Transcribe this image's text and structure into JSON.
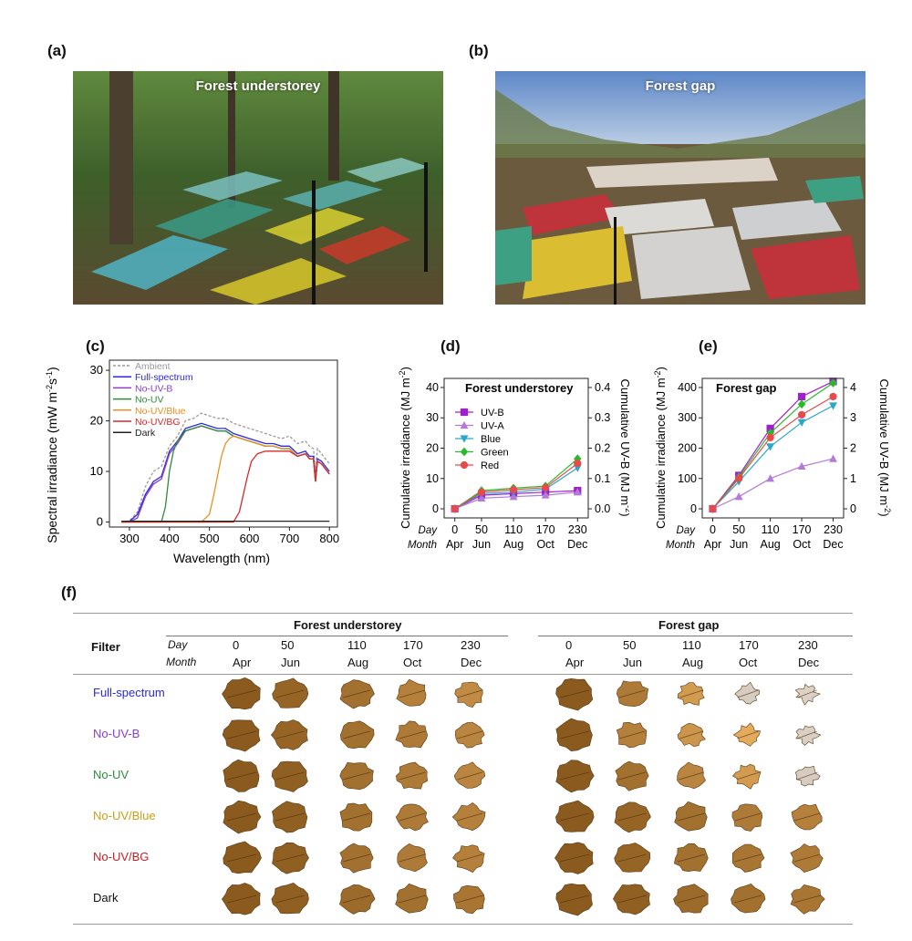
{
  "panel_labels": {
    "a": "(a)",
    "b": "(b)",
    "c": "(c)",
    "d": "(d)",
    "e": "(e)",
    "f": "(f)"
  },
  "photos": {
    "a_title": "Forest understorey",
    "b_title": "Forest gap"
  },
  "colors": {
    "ambient": "#9a9a9a",
    "full": "#2a2ae0",
    "no_uvb": "#8a3fc8",
    "no_uv": "#2e8b3a",
    "no_uv_blue": "#e89020",
    "no_uv_bg": "#d42a2a",
    "dark": "#222222",
    "uvb": "#a020d0",
    "uva": "#b47ad8",
    "blue": "#2aa8c8",
    "green": "#2cb82c",
    "red": "#e84a4a",
    "leaf": "#8a5a1e"
  },
  "chart_data": [
    {
      "type": "line",
      "panel": "c",
      "xlabel": "Wavelength (nm)",
      "ylabel": "Spectral irradiance (mW m-2s-1)",
      "ylabel_parts": [
        "Spectral irradiance (mW m",
        "-2",
        "s",
        "-1",
        ")"
      ],
      "xlim": [
        250,
        820
      ],
      "ylim": [
        -1,
        32
      ],
      "xticks": [
        300,
        400,
        500,
        600,
        700,
        800
      ],
      "yticks": [
        0,
        10,
        20,
        30
      ],
      "legend_position": "top-left",
      "series": [
        {
          "name": "Ambient",
          "x": [
            280,
            300,
            320,
            340,
            360,
            380,
            400,
            420,
            440,
            460,
            480,
            500,
            520,
            540,
            560,
            580,
            600,
            620,
            640,
            660,
            680,
            700,
            720,
            740,
            750,
            760,
            765,
            770,
            780,
            800
          ],
          "y": [
            0,
            0.2,
            2,
            7,
            10,
            11,
            15,
            17,
            20,
            20.5,
            21.5,
            21,
            20.5,
            20.5,
            19.5,
            19,
            18.5,
            18,
            17.5,
            17,
            16.5,
            17,
            15.5,
            16,
            15,
            14.5,
            10,
            14.5,
            13.5,
            11.5
          ]
        },
        {
          "name": "Full-spectrum",
          "x": [
            280,
            300,
            320,
            340,
            360,
            380,
            400,
            420,
            440,
            460,
            480,
            500,
            520,
            540,
            560,
            580,
            600,
            620,
            640,
            660,
            680,
            700,
            720,
            740,
            750,
            760,
            765,
            770,
            780,
            800
          ],
          "y": [
            0,
            0.1,
            1.5,
            5.5,
            8,
            9,
            14,
            16,
            18.5,
            19,
            19.5,
            19,
            18.5,
            18.5,
            17.5,
            17,
            16.5,
            16,
            15.5,
            15.5,
            15,
            15,
            13.5,
            14,
            13,
            13,
            8.5,
            12.5,
            12,
            10
          ]
        },
        {
          "name": "No-UV-B",
          "x": [
            280,
            300,
            320,
            340,
            360,
            380,
            400,
            420,
            440,
            460,
            480,
            500,
            520,
            540,
            560,
            580,
            600,
            620,
            640,
            660,
            680,
            700,
            720,
            740,
            750,
            760,
            765,
            770,
            780,
            800
          ],
          "y": [
            0,
            0,
            0.8,
            5,
            7.5,
            8.5,
            13.5,
            15.5,
            18,
            18.5,
            19,
            18.5,
            18,
            18,
            17,
            16.5,
            16,
            15.5,
            15,
            15,
            14.5,
            14.5,
            13,
            13.5,
            12.5,
            12.5,
            8,
            12,
            11.5,
            9.5
          ]
        },
        {
          "name": "No-UV",
          "x": [
            280,
            380,
            390,
            400,
            410,
            420,
            440,
            460,
            480,
            500,
            520,
            540,
            560,
            580,
            600,
            620,
            640,
            660,
            680,
            700,
            720,
            740,
            750,
            760,
            765,
            770,
            780,
            800
          ],
          "y": [
            0,
            0,
            3,
            10,
            14,
            16,
            18,
            18.5,
            19,
            18.5,
            18,
            18,
            17,
            16.5,
            16,
            15.5,
            15,
            15,
            14.5,
            14.5,
            13,
            13.5,
            12.5,
            12.5,
            8,
            12,
            11.5,
            9.5
          ]
        },
        {
          "name": "No-UV/Blue",
          "x": [
            280,
            480,
            500,
            510,
            520,
            530,
            540,
            550,
            560,
            580,
            600,
            620,
            640,
            660,
            680,
            700,
            720,
            740,
            750,
            760,
            765,
            770,
            780,
            800
          ],
          "y": [
            0,
            0,
            1.5,
            5,
            9,
            13,
            15.5,
            16.5,
            17,
            16.5,
            16,
            15.5,
            15,
            15,
            14.5,
            14.5,
            13,
            13.5,
            12.5,
            12.5,
            8,
            12,
            11.5,
            9.5
          ]
        },
        {
          "name": "No-UV/BG",
          "x": [
            280,
            560,
            575,
            585,
            595,
            605,
            620,
            640,
            660,
            680,
            700,
            720,
            740,
            750,
            760,
            765,
            770,
            780,
            800
          ],
          "y": [
            0,
            0,
            2,
            5.5,
            9,
            12,
            13.5,
            14,
            14,
            14,
            14,
            13,
            13.5,
            12.5,
            12.5,
            8,
            12,
            11.5,
            9.5
          ]
        },
        {
          "name": "Dark",
          "x": [
            280,
            800
          ],
          "y": [
            0.15,
            0.15
          ]
        }
      ]
    },
    {
      "type": "line",
      "panel": "d",
      "title": "Forest understorey",
      "ylabel": "Cumulative irradiance (MJ m-2)",
      "ylabel_parts": [
        "Cumulative irradiance (MJ m",
        "-2",
        ")"
      ],
      "y2label": "Cumulative UV-B (MJ m-2)",
      "y2label_parts": [
        "Cumulative UV-B (MJ m",
        "-2",
        ")"
      ],
      "x_row1_label": "Day",
      "x_row2_label": "Month",
      "x": [
        0,
        50,
        110,
        170,
        230
      ],
      "months": [
        "Apr",
        "Jun",
        "Aug",
        "Oct",
        "Dec"
      ],
      "ylim": [
        -3,
        43
      ],
      "yticks": [
        0,
        10,
        20,
        30,
        40
      ],
      "y2ticks": [
        "0.0",
        "0.1",
        "0.2",
        "0.3",
        "0.4"
      ],
      "legend_position": "left",
      "series": [
        {
          "name": "UV-B",
          "values": [
            0,
            4.5,
            5.0,
            5.5,
            6.0
          ],
          "marker": "square"
        },
        {
          "name": "UV-A",
          "values": [
            0,
            3.5,
            4.0,
            4.5,
            5.5
          ],
          "marker": "triangle-up"
        },
        {
          "name": "Blue",
          "values": [
            0,
            5.0,
            5.5,
            6.5,
            13.5
          ],
          "marker": "triangle-down"
        },
        {
          "name": "Green",
          "values": [
            0,
            6.0,
            6.8,
            7.5,
            16.5
          ],
          "marker": "diamond"
        },
        {
          "name": "Red",
          "values": [
            0,
            5.5,
            6.3,
            7.0,
            15.0
          ],
          "marker": "circle"
        }
      ]
    },
    {
      "type": "line",
      "panel": "e",
      "title": "Forest gap",
      "ylabel": "Cumulative irradiance (MJ m-2)",
      "ylabel_parts": [
        "Cumulative irradiance (MJ m",
        "-2",
        ")"
      ],
      "y2label": "Cumulative UV-B (MJ m-2)",
      "y2label_parts": [
        "Cumulative UV-B (MJ m",
        "-2",
        ")"
      ],
      "x_row1_label": "Day",
      "x_row2_label": "Month",
      "x": [
        0,
        50,
        110,
        170,
        230
      ],
      "months": [
        "Apr",
        "Jun",
        "Aug",
        "Oct",
        "Dec"
      ],
      "ylim": [
        -30,
        430
      ],
      "yticks": [
        0,
        100,
        200,
        300,
        400
      ],
      "y2ticks": [
        "0",
        "1",
        "2",
        "3",
        "4"
      ],
      "series": [
        {
          "name": "UV-B",
          "values": [
            0,
            110,
            265,
            370,
            420
          ],
          "marker": "square"
        },
        {
          "name": "UV-A",
          "values": [
            0,
            40,
            100,
            140,
            165
          ],
          "marker": "triangle-up"
        },
        {
          "name": "Blue",
          "values": [
            0,
            90,
            205,
            285,
            340
          ],
          "marker": "triangle-down"
        },
        {
          "name": "Green",
          "values": [
            0,
            105,
            250,
            345,
            415
          ],
          "marker": "diamond"
        },
        {
          "name": "Red",
          "values": [
            0,
            100,
            235,
            310,
            370
          ],
          "marker": "circle"
        }
      ]
    }
  ],
  "table": {
    "filter_header": "Filter",
    "day_label": "Day",
    "month_label": "Month",
    "group_understorey": "Forest understorey",
    "group_gap": "Forest gap",
    "days": [
      "0",
      "50",
      "110",
      "170",
      "230"
    ],
    "months": [
      "Apr",
      "Jun",
      "Aug",
      "Oct",
      "Dec"
    ],
    "filters": [
      {
        "name": "Full-spectrum",
        "color": "#2a2ae0",
        "understorey_decay": [
          0,
          0.1,
          0.2,
          0.35,
          0.45
        ],
        "gap_decay": [
          0,
          0.3,
          0.6,
          0.8,
          0.95
        ]
      },
      {
        "name": "No-UV-B",
        "color": "#8a3fc8",
        "understorey_decay": [
          0,
          0.1,
          0.2,
          0.3,
          0.4
        ],
        "gap_decay": [
          0,
          0.35,
          0.55,
          0.75,
          0.9
        ]
      },
      {
        "name": "No-UV",
        "color": "#2e8b3a",
        "understorey_decay": [
          0,
          0.05,
          0.2,
          0.3,
          0.4
        ],
        "gap_decay": [
          0,
          0.2,
          0.4,
          0.6,
          0.8
        ]
      },
      {
        "name": "No-UV/Blue",
        "color": "#c8a018",
        "understorey_decay": [
          0,
          0.05,
          0.2,
          0.3,
          0.35
        ],
        "gap_decay": [
          0,
          0.1,
          0.2,
          0.3,
          0.35
        ]
      },
      {
        "name": "No-UV/BG",
        "color": "#c81e1e",
        "understorey_decay": [
          0,
          0.05,
          0.2,
          0.3,
          0.35
        ],
        "gap_decay": [
          0,
          0.1,
          0.2,
          0.25,
          0.3
        ]
      },
      {
        "name": "Dark",
        "color": "#111111",
        "understorey_decay": [
          0,
          0.05,
          0.15,
          0.2,
          0.25
        ],
        "gap_decay": [
          0,
          0.05,
          0.15,
          0.2,
          0.25
        ]
      }
    ]
  }
}
